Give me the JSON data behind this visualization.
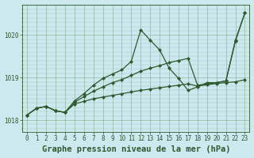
{
  "background_color": "#cee8f0",
  "plot_bg_color": "#cee8f0",
  "grid_color": "#4a8a4a",
  "line_color": "#2d5a2d",
  "title": "Graphe pression niveau de la mer (hPa)",
  "xlim": [
    -0.5,
    23.5
  ],
  "ylim": [
    1017.72,
    1020.72
  ],
  "yticks": [
    1018,
    1019,
    1020
  ],
  "xticks": [
    0,
    1,
    2,
    3,
    4,
    5,
    6,
    7,
    8,
    9,
    10,
    11,
    12,
    13,
    14,
    15,
    16,
    17,
    18,
    19,
    20,
    21,
    22,
    23
  ],
  "line_flat_y": [
    1018.12,
    1018.28,
    1018.32,
    1018.22,
    1018.18,
    1018.38,
    1018.44,
    1018.5,
    1018.54,
    1018.58,
    1018.62,
    1018.66,
    1018.7,
    1018.73,
    1018.76,
    1018.79,
    1018.82,
    1018.85,
    1018.8,
    1018.83,
    1018.86,
    1018.88,
    1018.9,
    1018.95
  ],
  "line_peak_y": [
    1018.12,
    1018.28,
    1018.32,
    1018.22,
    1018.18,
    1018.45,
    1018.62,
    1018.82,
    1018.98,
    1019.08,
    1019.18,
    1019.38,
    1020.12,
    1019.88,
    1019.65,
    1019.22,
    1018.98,
    1018.7,
    1018.78,
    1018.88,
    1018.88,
    1018.92,
    1019.88,
    1020.52
  ],
  "line_diag_y": [
    1018.12,
    1018.28,
    1018.32,
    1018.22,
    1018.18,
    1018.42,
    1018.55,
    1018.68,
    1018.78,
    1018.88,
    1018.95,
    1019.05,
    1019.15,
    1019.22,
    1019.28,
    1019.35,
    1019.4,
    1019.45,
    1018.82,
    1018.85,
    1018.88,
    1018.92,
    1019.85,
    1020.52
  ],
  "markersize": 2.2,
  "linewidth": 0.9,
  "title_fontsize": 7.5,
  "tick_fontsize": 5.5
}
